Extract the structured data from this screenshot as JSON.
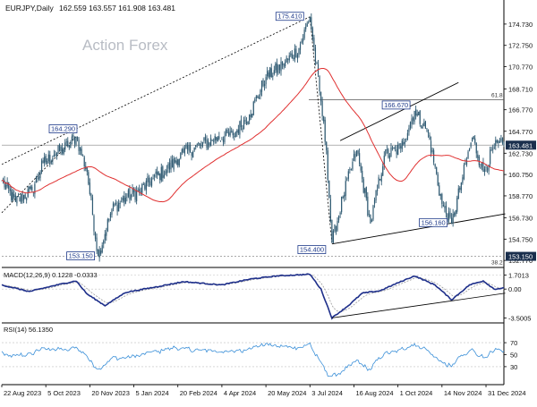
{
  "header": {
    "symbol": "EURJPY,Daily",
    "ohlc": "162.559 163.557 161.908 163.481"
  },
  "watermark": "Action Forex",
  "chart_data": {
    "type": "candlestick",
    "price_axis": {
      "range": [
        152.2,
        176.8
      ],
      "ticks": [
        "174.730",
        "172.750",
        "170.770",
        "168.710",
        "166.770",
        "164.770",
        "162.730",
        "160.750",
        "158.770",
        "156.730",
        "154.750",
        "152.770"
      ],
      "current_value": 163.481,
      "current_label": "163.481",
      "support_value": 153.15,
      "support_label": "153.150",
      "fib_label": "61.8",
      "fib_value": 167.7,
      "extra_label": "38.2"
    },
    "x_axis": {
      "labels": [
        "22 Aug 2023",
        "5 Oct 2023",
        "20 Nov 2023",
        "5 Jan 2024",
        "20 Feb 2024",
        "4 Apr 2024",
        "20 May 2024",
        "3 Jul 2024",
        "16 Aug 2024",
        "1 Oct 2024",
        "14 Nov 2024",
        "31 Dec 2024"
      ],
      "positions": [
        0,
        32,
        64,
        96,
        128,
        160,
        192,
        224,
        256,
        288,
        320,
        352
      ]
    },
    "bar_count": 366,
    "anchors": [
      [
        0,
        160.2
      ],
      [
        10,
        158.2
      ],
      [
        22,
        159.3
      ],
      [
        30,
        161.8
      ],
      [
        38,
        162.6
      ],
      [
        48,
        163.4
      ],
      [
        54,
        164.29
      ],
      [
        62,
        161.0
      ],
      [
        70,
        153.15
      ],
      [
        80,
        157.5
      ],
      [
        90,
        158.6
      ],
      [
        100,
        159.2
      ],
      [
        110,
        160.4
      ],
      [
        120,
        161.2
      ],
      [
        132,
        162.8
      ],
      [
        145,
        163.5
      ],
      [
        157,
        164.2
      ],
      [
        168,
        164.4
      ],
      [
        180,
        166.3
      ],
      [
        192,
        169.8
      ],
      [
        204,
        170.9
      ],
      [
        216,
        172.5
      ],
      [
        224,
        175.41
      ],
      [
        231,
        168.5
      ],
      [
        236,
        163.0
      ],
      [
        240,
        154.4
      ],
      [
        248,
        158.7
      ],
      [
        258,
        163.0
      ],
      [
        268,
        156.2
      ],
      [
        278,
        162.5
      ],
      [
        290,
        163.2
      ],
      [
        300,
        166.67
      ],
      [
        310,
        164.6
      ],
      [
        320,
        158.0
      ],
      [
        327,
        156.16
      ],
      [
        334,
        160.0
      ],
      [
        342,
        164.2
      ],
      [
        350,
        161.0
      ],
      [
        358,
        163.3
      ],
      [
        365,
        163.481
      ]
    ],
    "annotations": [
      {
        "label": "175.410",
        "bar": 224,
        "value": 175.41
      },
      {
        "label": "164.290",
        "bar": 54,
        "value": 164.29
      },
      {
        "label": "166.670",
        "bar": 300,
        "value": 166.67
      },
      {
        "label": "156.160",
        "bar": 327,
        "value": 156.16
      },
      {
        "label": "154.400",
        "bar": 240,
        "value": 154.4
      },
      {
        "label": "153.150",
        "bar": 70,
        "value": 153.15
      }
    ],
    "macd": {
      "label": "MACD(12,26,9) 0.1228 -0.0333",
      "range": [
        -4.0,
        2.3
      ],
      "ticks": [
        "1.7013",
        "0.00",
        "-3.5005"
      ],
      "tick_values": [
        1.7013,
        0.0,
        -3.5005
      ],
      "anchors": [
        [
          0,
          0.5
        ],
        [
          20,
          -0.3
        ],
        [
          40,
          0.5
        ],
        [
          54,
          1.0
        ],
        [
          62,
          -0.6
        ],
        [
          75,
          -2.0
        ],
        [
          90,
          -0.4
        ],
        [
          110,
          0.2
        ],
        [
          132,
          0.9
        ],
        [
          160,
          0.5
        ],
        [
          180,
          1.2
        ],
        [
          200,
          1.6
        ],
        [
          224,
          1.8
        ],
        [
          232,
          0.0
        ],
        [
          240,
          -3.5005
        ],
        [
          252,
          -2.0
        ],
        [
          262,
          -0.5
        ],
        [
          275,
          -0.2
        ],
        [
          290,
          0.9
        ],
        [
          300,
          1.6
        ],
        [
          315,
          0.5
        ],
        [
          327,
          -1.3
        ],
        [
          340,
          0.5
        ],
        [
          350,
          1.0
        ],
        [
          358,
          0.0
        ],
        [
          365,
          0.1228
        ]
      ]
    },
    "rsi": {
      "label": "RSI(14) 56.1350",
      "range": [
        0,
        100
      ],
      "ticks": [
        "70",
        "50",
        "30"
      ],
      "tick_values": [
        70,
        50,
        30
      ],
      "current": 56.135
    },
    "grid": false
  }
}
